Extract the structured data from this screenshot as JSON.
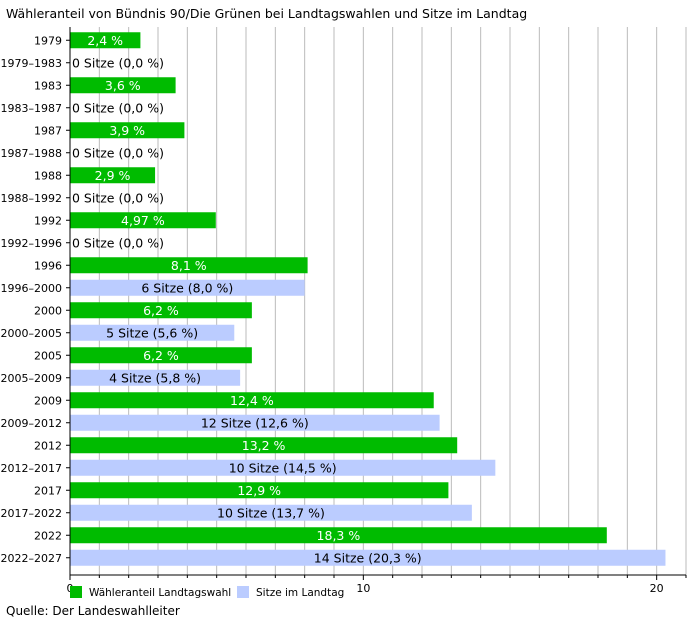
{
  "title": "Wähleranteil von Bündnis 90/Die Grünen bei Landtagswahlen und Sitze im Landtag",
  "source": "Quelle: Der Landeswahlleiter",
  "colors": {
    "votes": "#00bb00",
    "seats": "#bbccff",
    "grid": "#bbbbbb"
  },
  "chart_data": {
    "type": "bar",
    "orientation": "horizontal",
    "title": "Wähleranteil von Bündnis 90/Die Grünen bei Landtagswahlen und Sitze im Landtag",
    "xlim": [
      0,
      21
    ],
    "x_ticks": [
      0,
      10,
      20
    ],
    "grid": true,
    "legend_position": "bottom-left",
    "legend": [
      {
        "series": "votes",
        "label": "Wähleranteil Landtagswahl"
      },
      {
        "series": "seats",
        "label": "Sitze im Landtag"
      }
    ],
    "rows": [
      {
        "category": "1979",
        "series": "votes",
        "value": 2.4,
        "label": "2,4 %"
      },
      {
        "category": "1979–1983",
        "series": "seats",
        "value": 0,
        "label": "0 Sitze (0,0 %)"
      },
      {
        "category": "1983",
        "series": "votes",
        "value": 3.6,
        "label": "3,6 %"
      },
      {
        "category": "1983–1987",
        "series": "seats",
        "value": 0,
        "label": "0 Sitze (0,0 %)"
      },
      {
        "category": "1987",
        "series": "votes",
        "value": 3.9,
        "label": "3,9 %"
      },
      {
        "category": "1987–1988",
        "series": "seats",
        "value": 0,
        "label": "0 Sitze (0,0 %)"
      },
      {
        "category": "1988",
        "series": "votes",
        "value": 2.9,
        "label": "2,9 %"
      },
      {
        "category": "1988–1992",
        "series": "seats",
        "value": 0,
        "label": "0 Sitze (0,0 %)"
      },
      {
        "category": "1992",
        "series": "votes",
        "value": 4.97,
        "label": "4,97 %"
      },
      {
        "category": "1992–1996",
        "series": "seats",
        "value": 0,
        "label": "0 Sitze (0,0 %)"
      },
      {
        "category": "1996",
        "series": "votes",
        "value": 8.1,
        "label": "8,1 %"
      },
      {
        "category": "1996–2000",
        "series": "seats",
        "value": 8.0,
        "label": "6 Sitze (8,0 %)"
      },
      {
        "category": "2000",
        "series": "votes",
        "value": 6.2,
        "label": "6,2 %"
      },
      {
        "category": "2000–2005",
        "series": "seats",
        "value": 5.6,
        "label": "5 Sitze (5,6 %)"
      },
      {
        "category": "2005",
        "series": "votes",
        "value": 6.2,
        "label": "6,2 %"
      },
      {
        "category": "2005–2009",
        "series": "seats",
        "value": 5.8,
        "label": "4 Sitze (5,8 %)"
      },
      {
        "category": "2009",
        "series": "votes",
        "value": 12.4,
        "label": "12,4 %"
      },
      {
        "category": "2009–2012",
        "series": "seats",
        "value": 12.6,
        "label": "12 Sitze (12,6 %)"
      },
      {
        "category": "2012",
        "series": "votes",
        "value": 13.2,
        "label": "13,2 %"
      },
      {
        "category": "2012–2017",
        "series": "seats",
        "value": 14.5,
        "label": "10 Sitze (14,5 %)"
      },
      {
        "category": "2017",
        "series": "votes",
        "value": 12.9,
        "label": "12,9 %"
      },
      {
        "category": "2017–2022",
        "series": "seats",
        "value": 13.7,
        "label": "10 Sitze (13,7 %)"
      },
      {
        "category": "2022",
        "series": "votes",
        "value": 18.3,
        "label": "18,3 %"
      },
      {
        "category": "2022–2027",
        "series": "seats",
        "value": 20.3,
        "label": "14 Sitze (20,3 %)"
      }
    ]
  }
}
